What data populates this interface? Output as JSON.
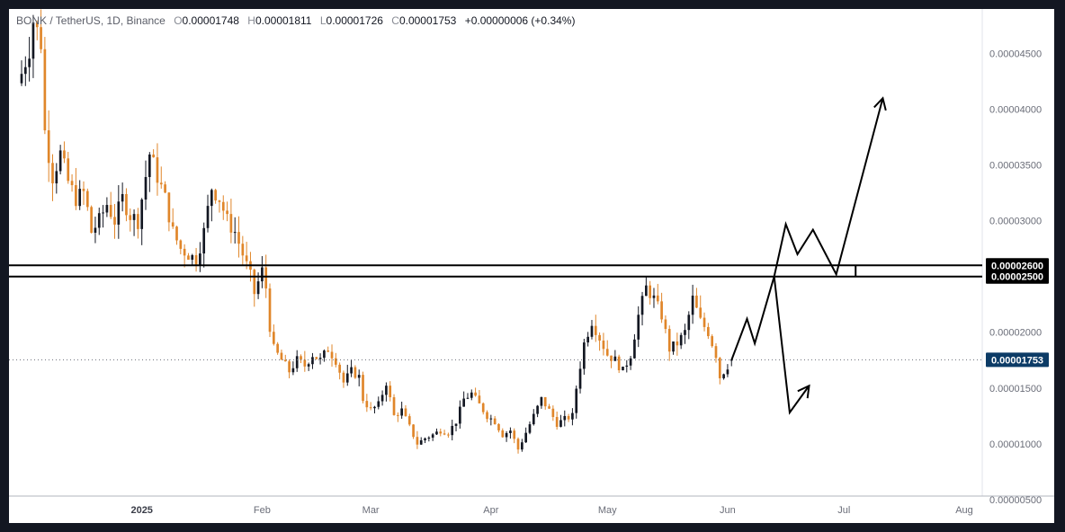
{
  "header": {
    "symbol": "BONK / TetherUS, 1D, Binance",
    "open_label": "O",
    "open": "0.00001748",
    "high_label": "H",
    "high": "0.00001811",
    "low_label": "L",
    "low": "0.00001726",
    "close_label": "C",
    "close": "0.00001753",
    "change": "+0.00000006 (+0.34%)"
  },
  "colors": {
    "up": "#131722",
    "down": "#e0862a",
    "background": "#ffffff",
    "frame": "#131722",
    "price_tag": "#0c3b66",
    "level_tag": "#000000"
  },
  "chart_data": {
    "type": "candlestick",
    "ylim": [
      4.5e-06,
      4.9e-05
    ],
    "y_ticks": [
      {
        "value": 4.5e-05,
        "label": "0.00004500"
      },
      {
        "value": 4e-05,
        "label": "0.00004000"
      },
      {
        "value": 3.5e-05,
        "label": "0.00003500"
      },
      {
        "value": 3e-05,
        "label": "0.00003000"
      },
      {
        "value": 2e-05,
        "label": "0.00002000"
      },
      {
        "value": 1.5e-05,
        "label": "0.00001500"
      },
      {
        "value": 1e-05,
        "label": "0.00001000"
      },
      {
        "value": 5e-06,
        "label": "0.00000500"
      }
    ],
    "x_ticks": [
      {
        "day": 31,
        "label": "2025",
        "bold": true
      },
      {
        "day": 62,
        "label": "Feb",
        "bold": false
      },
      {
        "day": 90,
        "label": "Mar",
        "bold": false
      },
      {
        "day": 121,
        "label": "Apr",
        "bold": false
      },
      {
        "day": 151,
        "label": "May",
        "bold": false
      },
      {
        "day": 182,
        "label": "Jun",
        "bold": false
      },
      {
        "day": 212,
        "label": "Jul",
        "bold": false
      },
      {
        "day": 243,
        "label": "Aug",
        "bold": false
      }
    ],
    "horizontal_levels": [
      {
        "value": 2.6e-05,
        "label": "0.00002600"
      },
      {
        "value": 2.5e-05,
        "label": "0.00002500"
      }
    ],
    "last_price": {
      "value": 1.753e-05,
      "label": "0.00001753"
    },
    "candles_anchor_close": [
      [
        0,
        4.32e-05
      ],
      [
        2,
        4.55e-05
      ],
      [
        3,
        4.8e-05
      ],
      [
        5,
        4.6e-05
      ],
      [
        6,
        3.8e-05
      ],
      [
        8,
        3.4e-05
      ],
      [
        10,
        3.6e-05
      ],
      [
        12,
        3.35e-05
      ],
      [
        14,
        3.2e-05
      ],
      [
        16,
        3.25e-05
      ],
      [
        17,
        3.1e-05
      ],
      [
        18,
        2.9e-05
      ],
      [
        20,
        3e-05
      ],
      [
        22,
        3.15e-05
      ],
      [
        24,
        3e-05
      ],
      [
        26,
        3.2e-05
      ],
      [
        28,
        3.05e-05
      ],
      [
        30,
        3e-05
      ],
      [
        31,
        3.2e-05
      ],
      [
        33,
        3.6e-05
      ],
      [
        35,
        3.4e-05
      ],
      [
        37,
        3.2e-05
      ],
      [
        39,
        2.9e-05
      ],
      [
        41,
        2.75e-05
      ],
      [
        43,
        2.7e-05
      ],
      [
        45,
        2.65e-05
      ],
      [
        47,
        2.9e-05
      ],
      [
        49,
        3.3e-05
      ],
      [
        51,
        3.2e-05
      ],
      [
        53,
        3e-05
      ],
      [
        55,
        2.9e-05
      ],
      [
        57,
        2.7e-05
      ],
      [
        59,
        2.5e-05
      ],
      [
        60,
        2.35e-05
      ],
      [
        62,
        2.55e-05
      ],
      [
        63,
        2.4e-05
      ],
      [
        64,
        2.05e-05
      ],
      [
        65,
        1.85e-05
      ],
      [
        67,
        1.75e-05
      ],
      [
        69,
        1.65e-05
      ],
      [
        71,
        1.75e-05
      ],
      [
        73,
        1.7e-05
      ],
      [
        75,
        1.8e-05
      ],
      [
        77,
        1.75e-05
      ],
      [
        79,
        1.85e-05
      ],
      [
        81,
        1.75e-05
      ],
      [
        83,
        1.55e-05
      ],
      [
        85,
        1.65e-05
      ],
      [
        87,
        1.6e-05
      ],
      [
        88,
        1.4e-05
      ],
      [
        90,
        1.3e-05
      ],
      [
        92,
        1.35e-05
      ],
      [
        94,
        1.55e-05
      ],
      [
        96,
        1.25e-05
      ],
      [
        98,
        1.3e-05
      ],
      [
        100,
        1.15e-05
      ],
      [
        102,
        1e-05
      ],
      [
        104,
        1.05e-05
      ],
      [
        106,
        1.08e-05
      ],
      [
        108,
        1.12e-05
      ],
      [
        110,
        1.1e-05
      ],
      [
        112,
        1.2e-05
      ],
      [
        114,
        1.4e-05
      ],
      [
        116,
        1.45e-05
      ],
      [
        118,
        1.35e-05
      ],
      [
        120,
        1.25e-05
      ],
      [
        122,
        1.2e-05
      ],
      [
        124,
        1.08e-05
      ],
      [
        126,
        1.12e-05
      ],
      [
        128,
        9.5e-06
      ],
      [
        130,
        1.1e-05
      ],
      [
        132,
        1.25e-05
      ],
      [
        134,
        1.4e-05
      ],
      [
        136,
        1.3e-05
      ],
      [
        138,
        1.18e-05
      ],
      [
        140,
        1.22e-05
      ],
      [
        142,
        1.25e-05
      ],
      [
        143,
        1.5e-05
      ],
      [
        145,
        1.9e-05
      ],
      [
        147,
        2.1e-05
      ],
      [
        149,
        1.95e-05
      ],
      [
        151,
        1.8e-05
      ],
      [
        153,
        1.75e-05
      ],
      [
        155,
        1.65e-05
      ],
      [
        157,
        1.8e-05
      ],
      [
        159,
        2.15e-05
      ],
      [
        161,
        2.4e-05
      ],
      [
        163,
        2.3e-05
      ],
      [
        165,
        2.15e-05
      ],
      [
        167,
        1.85e-05
      ],
      [
        169,
        1.9e-05
      ],
      [
        171,
        2e-05
      ],
      [
        173,
        2.3e-05
      ],
      [
        175,
        2.1e-05
      ],
      [
        177,
        2e-05
      ],
      [
        179,
        1.8e-05
      ],
      [
        180,
        1.6e-05
      ],
      [
        181,
        1.65e-05
      ],
      [
        182,
        1.7e-05
      ],
      [
        183,
        1.75e-05
      ]
    ],
    "projection_paths": [
      {
        "name": "bullish-path",
        "points": [
          [
            183,
            1.75e-05
          ],
          [
            187,
            2.12e-05
          ],
          [
            189,
            1.9e-05
          ],
          [
            194,
            2.5e-05
          ],
          [
            197,
            2.97e-05
          ],
          [
            200,
            2.7e-05
          ],
          [
            204,
            2.92e-05
          ],
          [
            210,
            2.52e-05
          ],
          [
            222,
            4.1e-05
          ]
        ],
        "arrow": true
      },
      {
        "name": "bearish-path",
        "points": [
          [
            194,
            2.5e-05
          ],
          [
            198,
            1.28e-05
          ],
          [
            203,
            1.52e-05
          ]
        ],
        "arrow": true
      }
    ]
  }
}
